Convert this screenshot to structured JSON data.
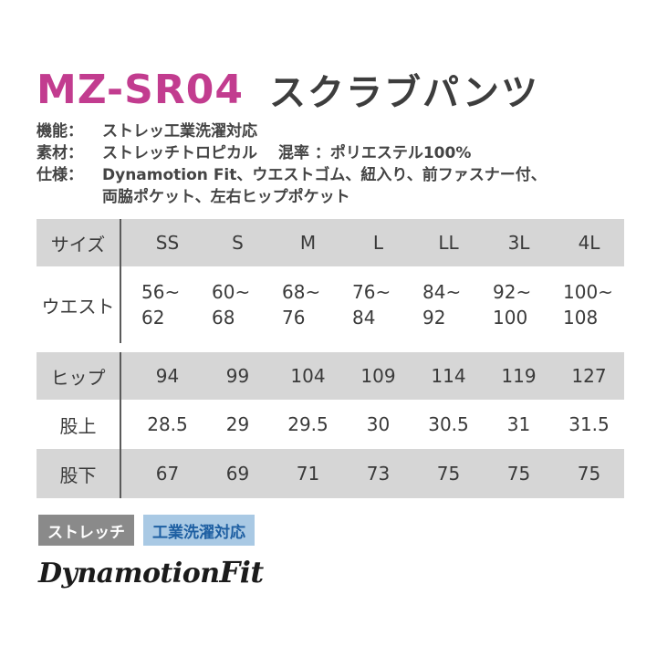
{
  "product": {
    "code": "MZ-SR04",
    "name": "スクラブパンツ"
  },
  "specs": [
    {
      "label": "機能：",
      "value": "ストレッ工業洗濯対応"
    },
    {
      "label": "素材：",
      "value": "ストレッチトロピカル　 混率 ：ポリエステル100%"
    },
    {
      "label": "仕様：",
      "value": "Dynamotion Fit、ウエストゴム、紐入り、前ファスナー付、",
      "continuation": "両脇ポケット、左右ヒップポケット"
    }
  ],
  "size_table": {
    "header_label": "サイズ",
    "sizes": [
      "SS",
      "S",
      "M",
      "L",
      "LL",
      "3L",
      "4L"
    ],
    "rows": [
      {
        "label": "ウエスト",
        "values": [
          [
            "56~",
            "62"
          ],
          [
            "60~",
            "68"
          ],
          [
            "68~",
            "76"
          ],
          [
            "76~",
            "84"
          ],
          [
            "84~",
            "92"
          ],
          [
            "92~",
            "100"
          ],
          [
            "100~",
            "108"
          ]
        ]
      },
      {
        "label": "ヒップ",
        "values": [
          "94",
          "99",
          "104",
          "109",
          "114",
          "119",
          "127"
        ]
      },
      {
        "label": "股上",
        "values": [
          "28.5",
          "29",
          "29.5",
          "30",
          "30.5",
          "31",
          "31.5"
        ]
      },
      {
        "label": "股下",
        "values": [
          "67",
          "69",
          "71",
          "73",
          "75",
          "75",
          "75"
        ]
      }
    ]
  },
  "badges": {
    "stretch": "ストレッチ",
    "industrial_wash": "工業洗濯対応"
  },
  "logo": {
    "text_main": "Dynamotion",
    "text_fit": "Fit"
  },
  "colors": {
    "code_magenta": "#c23c8f",
    "row_shade": "#d6d6d6",
    "badge_gray": "#8a8a8a",
    "badge_blue_bg": "#a9c9e4",
    "badge_blue_text": "#1e5fa2"
  }
}
